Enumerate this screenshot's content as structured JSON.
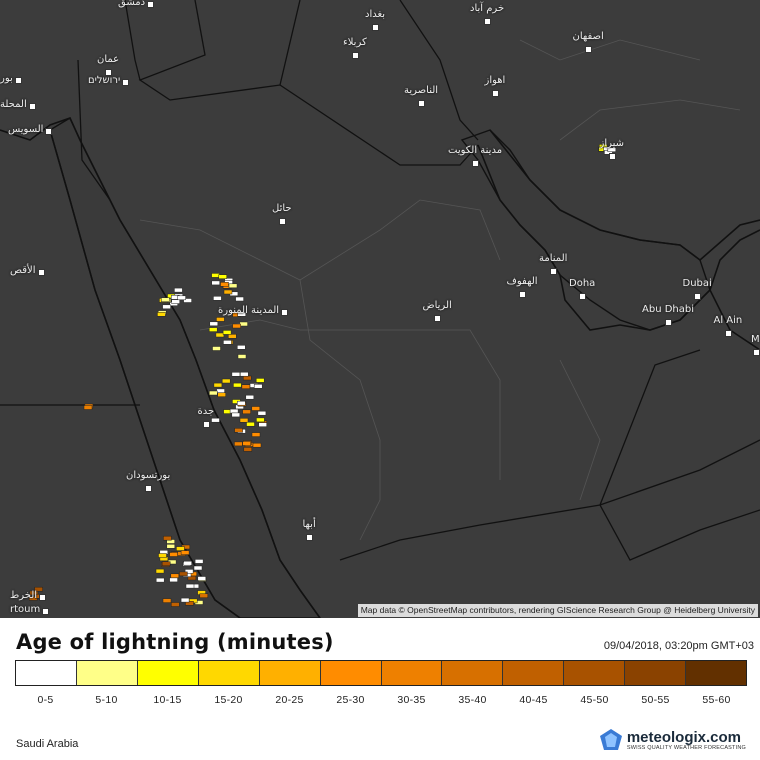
{
  "map": {
    "attribution": "Map data © OpenStreetMap contributors, rendering GIScience Research Group @ Heidelberg University",
    "background_color": "#3c3c3c",
    "border_color": "#111111",
    "cities": [
      {
        "id": "damascus",
        "label": "دمشق"
      },
      {
        "id": "baghdad",
        "label": "بغداد"
      },
      {
        "id": "khorramabad",
        "label": "خرم آباد"
      },
      {
        "id": "isfahan",
        "label": "اصفهان"
      },
      {
        "id": "karbala",
        "label": "كربلاء"
      },
      {
        "id": "amman",
        "label": "عمان"
      },
      {
        "id": "jerusalem",
        "label": "ירושלים"
      },
      {
        "id": "beirut",
        "label": "بور"
      },
      {
        "id": "ahvaz",
        "label": "اهواز"
      },
      {
        "id": "nasiriyah",
        "label": "الناصرية"
      },
      {
        "id": "mahalla",
        "label": "المحلة"
      },
      {
        "id": "suez",
        "label": "السويس"
      },
      {
        "id": "kuwait",
        "label": "مدينة الكويت"
      },
      {
        "id": "shiraz",
        "label": "شيراز"
      },
      {
        "id": "hail",
        "label": "حائل"
      },
      {
        "id": "manama",
        "label": "المنامة"
      },
      {
        "id": "luxor",
        "label": "الأقص"
      },
      {
        "id": "hofuf",
        "label": "الهفوف"
      },
      {
        "id": "doha",
        "label": "Doha"
      },
      {
        "id": "dubai",
        "label": "Dubai"
      },
      {
        "id": "medina",
        "label": "المدينة المنورة"
      },
      {
        "id": "riyadh",
        "label": "الرياض"
      },
      {
        "id": "abudhabi",
        "label": "Abu Dhabi"
      },
      {
        "id": "alain",
        "label": "Al Ain"
      },
      {
        "id": "muscat",
        "label": "M"
      },
      {
        "id": "jeddah",
        "label": "جدة"
      },
      {
        "id": "portsudan",
        "label": "بورتسودان"
      },
      {
        "id": "abha",
        "label": "أبها"
      },
      {
        "id": "khartoum_ar",
        "label": "الخرط"
      },
      {
        "id": "khartoum",
        "label": "rtoum"
      }
    ]
  },
  "legend": {
    "title": "Age of lightning (minutes)",
    "datetime": "09/04/2018, 03:20pm GMT+03",
    "bins": [
      {
        "label": "0-5",
        "color": "#ffffff"
      },
      {
        "label": "5-10",
        "color": "#ffff88"
      },
      {
        "label": "10-15",
        "color": "#ffff00"
      },
      {
        "label": "15-20",
        "color": "#ffd800"
      },
      {
        "label": "20-25",
        "color": "#ffb000"
      },
      {
        "label": "25-30",
        "color": "#ff8c00"
      },
      {
        "label": "30-35",
        "color": "#ee8000"
      },
      {
        "label": "35-40",
        "color": "#d77000"
      },
      {
        "label": "40-45",
        "color": "#c06000"
      },
      {
        "label": "45-50",
        "color": "#a85200"
      },
      {
        "label": "50-55",
        "color": "#8a4200"
      },
      {
        "label": "55-60",
        "color": "#623000"
      }
    ]
  },
  "footer": {
    "region": "Saudi Arabia",
    "brand": "meteologix.com",
    "tagline": "SWISS QUALITY WEATHER FORECASTING"
  }
}
